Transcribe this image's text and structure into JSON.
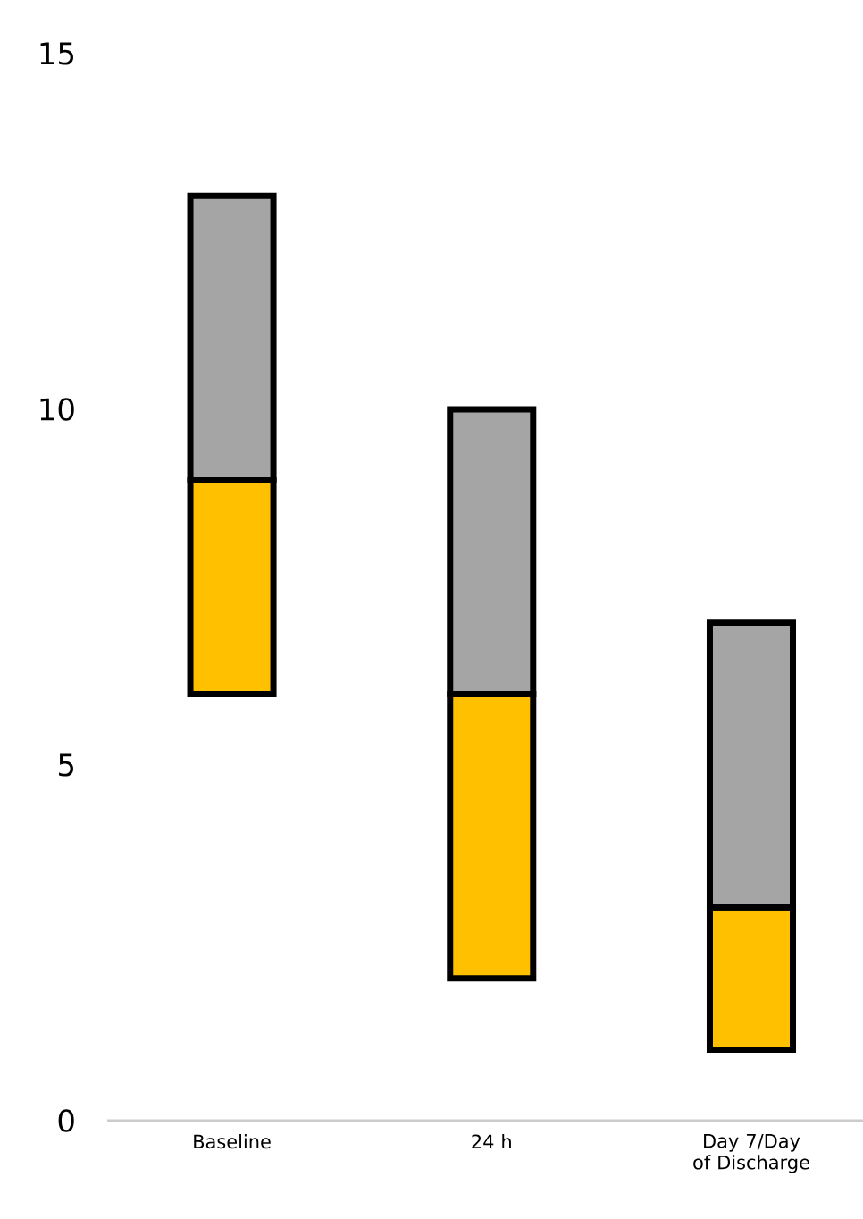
{
  "chart_data": {
    "type": "bar",
    "categories": [
      "Baseline",
      "24 h",
      "Day 7/Day of Discharge"
    ],
    "series": [
      {
        "color": "#ffc000",
        "base": [
          6,
          2,
          1
        ],
        "values": [
          3,
          4,
          2
        ]
      },
      {
        "color": "#a5a5a5",
        "base": [
          9,
          6,
          3
        ],
        "values": [
          4,
          4,
          4
        ]
      }
    ],
    "ylim": [
      0,
      15
    ],
    "yticks": [
      0,
      5,
      10,
      15
    ]
  }
}
